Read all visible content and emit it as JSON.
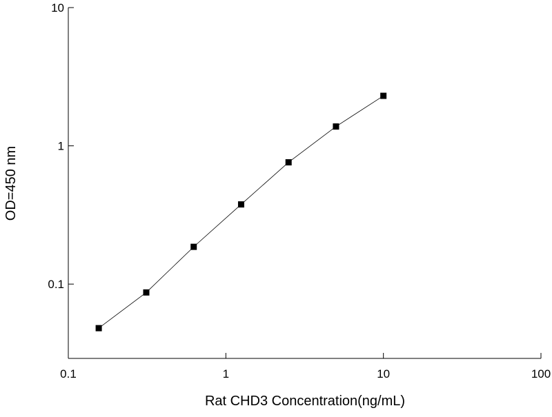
{
  "chart_data": {
    "type": "line",
    "x_label": "Rat CHD3 Concentration(ng/mL)",
    "y_label": "OD=450 nm",
    "log_x": true,
    "log_y": true,
    "x": [
      0.156,
      0.3125,
      0.625,
      1.25,
      2.5,
      5,
      10
    ],
    "series": [
      {
        "color": "#000000",
        "values": [
          0.048,
          0.087,
          0.186,
          0.377,
          0.76,
          1.38,
          2.3
        ]
      }
    ],
    "xlim": [
      0.1,
      100
    ],
    "xticks": [
      0.1,
      1,
      10,
      100
    ],
    "ylim": [
      0.029,
      10
    ],
    "yticks": [
      0.1,
      1,
      10
    ]
  }
}
